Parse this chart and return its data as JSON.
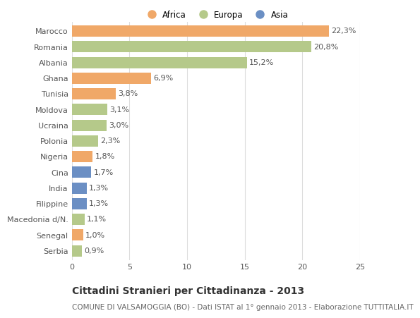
{
  "categories": [
    "Marocco",
    "Romania",
    "Albania",
    "Ghana",
    "Tunisia",
    "Moldova",
    "Ucraina",
    "Polonia",
    "Nigeria",
    "Cina",
    "India",
    "Filippine",
    "Macedonia d/N.",
    "Senegal",
    "Serbia"
  ],
  "values": [
    22.3,
    20.8,
    15.2,
    6.9,
    3.8,
    3.1,
    3.0,
    2.3,
    1.8,
    1.7,
    1.3,
    1.3,
    1.1,
    1.0,
    0.9
  ],
  "labels": [
    "22,3%",
    "20,8%",
    "15,2%",
    "6,9%",
    "3,8%",
    "3,1%",
    "3,0%",
    "2,3%",
    "1,8%",
    "1,7%",
    "1,3%",
    "1,3%",
    "1,1%",
    "1,0%",
    "0,9%"
  ],
  "colors": [
    "#f0a868",
    "#b5c98a",
    "#b5c98a",
    "#f0a868",
    "#f0a868",
    "#b5c98a",
    "#b5c98a",
    "#b5c98a",
    "#f0a868",
    "#6b8fc4",
    "#6b8fc4",
    "#6b8fc4",
    "#b5c98a",
    "#f0a868",
    "#b5c98a"
  ],
  "legend_labels": [
    "Africa",
    "Europa",
    "Asia"
  ],
  "legend_colors": [
    "#f0a868",
    "#b5c98a",
    "#6b8fc4"
  ],
  "title_main": "Cittadini Stranieri per Cittadinanza - 2013",
  "title_sub": "COMUNE DI VALSAMOGGIA (BO) - Dati ISTAT al 1° gennaio 2013 - Elaborazione TUTTITALIA.IT",
  "xlim": [
    0,
    25
  ],
  "xticks": [
    0,
    5,
    10,
    15,
    20,
    25
  ],
  "background_color": "#ffffff",
  "grid_color": "#dddddd",
  "bar_height": 0.72,
  "label_fontsize": 8,
  "tick_fontsize": 8,
  "title_fontsize": 10,
  "subtitle_fontsize": 7.5
}
